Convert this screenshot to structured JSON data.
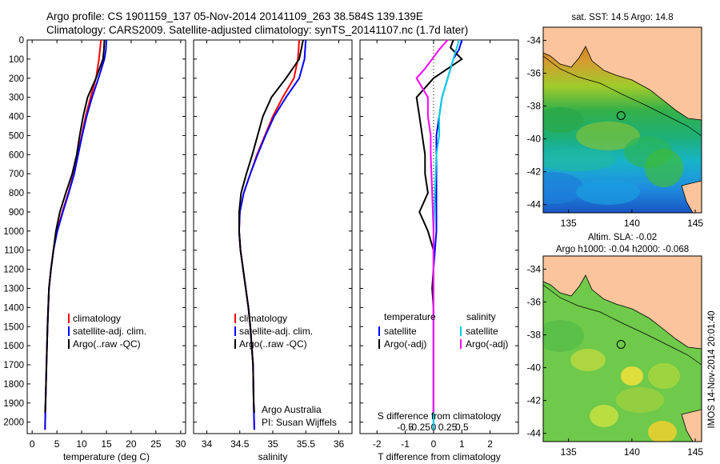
{
  "header": {
    "line1": "Argo profile: CS 1901159_137 05-Nov-2014 20141109_263 38.584S 139.139E",
    "line2": "Climatology: CARS2009. Satellite-adjusted climatology: synTS_20141107.nc (1.7d later)"
  },
  "footer_stamp": "IMOS 14-Nov-2014 20:01:40",
  "colors": {
    "climatology": "#ff0000",
    "satellite": "#0000ff",
    "argo": "#000000",
    "salinity_sat": "#00d0e0",
    "salinity_argo": "#ff00ff",
    "land": "#fbc49c"
  },
  "chart_data": [
    {
      "id": "temperature",
      "type": "line",
      "xlabel": "temperature (deg C)",
      "ylabel": "",
      "xlim": [
        -1,
        31
      ],
      "ylim": [
        2060,
        0
      ],
      "xticks": [
        0,
        5,
        10,
        15,
        20,
        25,
        30
      ],
      "yticks": [
        0,
        100,
        200,
        300,
        400,
        500,
        600,
        700,
        800,
        900,
        1000,
        1100,
        1200,
        1300,
        1400,
        1500,
        1600,
        1700,
        1800,
        1900,
        2000
      ],
      "legend": [
        "climatology",
        "satellite-adj. clim.",
        "Argo(..raw -QC)"
      ],
      "series": [
        {
          "name": "climatology",
          "color": "#ff0000",
          "points": [
            [
              13.9,
              0
            ],
            [
              13.7,
              50
            ],
            [
              13.5,
              100
            ],
            [
              12.9,
              200
            ],
            [
              11.8,
              300
            ],
            [
              10.8,
              400
            ],
            [
              10.0,
              500
            ],
            [
              9.2,
              600
            ],
            [
              8.4,
              700
            ],
            [
              7.3,
              800
            ],
            [
              6.1,
              900
            ],
            [
              5.0,
              1000
            ],
            [
              4.3,
              1100
            ],
            [
              3.8,
              1200
            ],
            [
              3.4,
              1300
            ],
            [
              3.1,
              1500
            ],
            [
              2.9,
              1700
            ],
            [
              2.7,
              1900
            ],
            [
              2.6,
              2040
            ]
          ]
        },
        {
          "name": "satellite-adj. clim.",
          "color": "#0000ff",
          "points": [
            [
              15.0,
              0
            ],
            [
              14.9,
              50
            ],
            [
              14.6,
              100
            ],
            [
              13.4,
              200
            ],
            [
              12.1,
              300
            ],
            [
              11.0,
              400
            ],
            [
              10.1,
              500
            ],
            [
              9.3,
              600
            ],
            [
              8.5,
              700
            ],
            [
              7.4,
              800
            ],
            [
              6.2,
              900
            ],
            [
              5.1,
              1000
            ],
            [
              4.3,
              1100
            ],
            [
              3.8,
              1200
            ],
            [
              3.4,
              1300
            ],
            [
              3.1,
              1500
            ],
            [
              2.9,
              1700
            ],
            [
              2.7,
              1900
            ],
            [
              2.6,
              2040
            ]
          ]
        },
        {
          "name": "Argo(..raw -QC)",
          "color": "#000000",
          "points": [
            [
              14.6,
              0
            ],
            [
              14.5,
              50
            ],
            [
              14.3,
              100
            ],
            [
              12.9,
              200
            ],
            [
              11.2,
              300
            ],
            [
              10.3,
              400
            ],
            [
              9.6,
              500
            ],
            [
              9.0,
              600
            ],
            [
              8.1,
              700
            ],
            [
              6.8,
              800
            ],
            [
              5.6,
              900
            ],
            [
              4.8,
              1000
            ],
            [
              4.3,
              1100
            ],
            [
              3.8,
              1200
            ],
            [
              3.4,
              1300
            ],
            [
              3.1,
              1500
            ],
            [
              2.9,
              1700
            ],
            [
              2.7,
              1900
            ],
            [
              2.6,
              1950
            ]
          ]
        }
      ]
    },
    {
      "id": "salinity",
      "type": "line",
      "xlabel": "salinity",
      "ylabel": "",
      "xlim": [
        33.8,
        36.2
      ],
      "ylim": [
        2060,
        0
      ],
      "xticks": [
        34,
        34.5,
        35,
        35.5,
        36
      ],
      "legend": [
        "climatology",
        "satellite-adj. clim.",
        "Argo(..raw -QC)"
      ],
      "annotations": [
        "Argo Australia",
        "PI: Susan Wijffels"
      ],
      "series": [
        {
          "name": "climatology",
          "color": "#ff0000",
          "points": [
            [
              35.4,
              0
            ],
            [
              35.38,
              100
            ],
            [
              35.32,
              200
            ],
            [
              35.15,
              300
            ],
            [
              35.0,
              400
            ],
            [
              34.88,
              500
            ],
            [
              34.76,
              600
            ],
            [
              34.66,
              700
            ],
            [
              34.56,
              800
            ],
            [
              34.5,
              900
            ],
            [
              34.49,
              1000
            ],
            [
              34.51,
              1100
            ],
            [
              34.55,
              1200
            ],
            [
              34.59,
              1300
            ],
            [
              34.63,
              1400
            ],
            [
              34.66,
              1500
            ],
            [
              34.68,
              1600
            ],
            [
              34.7,
              1700
            ],
            [
              34.71,
              1900
            ],
            [
              34.72,
              2040
            ]
          ]
        },
        {
          "name": "satellite-adj. clim.",
          "color": "#0000ff",
          "points": [
            [
              35.5,
              0
            ],
            [
              35.48,
              100
            ],
            [
              35.4,
              200
            ],
            [
              35.2,
              300
            ],
            [
              35.02,
              400
            ],
            [
              34.89,
              500
            ],
            [
              34.77,
              600
            ],
            [
              34.66,
              700
            ],
            [
              34.56,
              800
            ],
            [
              34.5,
              900
            ],
            [
              34.49,
              1000
            ],
            [
              34.51,
              1100
            ],
            [
              34.55,
              1200
            ],
            [
              34.59,
              1300
            ],
            [
              34.63,
              1400
            ],
            [
              34.66,
              1500
            ],
            [
              34.68,
              1600
            ],
            [
              34.7,
              1700
            ],
            [
              34.71,
              1900
            ],
            [
              34.72,
              2040
            ]
          ]
        },
        {
          "name": "Argo(..raw -QC)",
          "color": "#000000",
          "points": [
            [
              35.46,
              0
            ],
            [
              35.4,
              100
            ],
            [
              35.2,
              200
            ],
            [
              34.98,
              300
            ],
            [
              34.85,
              400
            ],
            [
              34.77,
              500
            ],
            [
              34.69,
              600
            ],
            [
              34.6,
              700
            ],
            [
              34.52,
              800
            ],
            [
              34.49,
              900
            ],
            [
              34.49,
              1000
            ],
            [
              34.51,
              1100
            ],
            [
              34.55,
              1200
            ],
            [
              34.59,
              1300
            ],
            [
              34.63,
              1400
            ],
            [
              34.66,
              1500
            ],
            [
              34.68,
              1600
            ],
            [
              34.7,
              1700
            ],
            [
              34.71,
              1900
            ],
            [
              34.72,
              1950
            ]
          ]
        }
      ]
    },
    {
      "id": "difference",
      "type": "line",
      "xlabel": "T difference from climatology",
      "xlabel_top": "S difference from climatology",
      "ylabel": "",
      "xlim": [
        -2.6,
        3.0
      ],
      "ylim": [
        2060,
        0
      ],
      "xticks": [
        -2,
        -1,
        0,
        1,
        2
      ],
      "sticks_labels": [
        [
          "-0.5",
          -1.0
        ],
        [
          "-0.25",
          -0.5
        ],
        [
          "0",
          0
        ],
        [
          "0.25",
          0.5
        ],
        [
          "0.5",
          1.0
        ]
      ],
      "legend_left_title": "temperature",
      "legend_right_title": "salinity",
      "legend_left": [
        "satellite",
        "Argo(-adj)"
      ],
      "legend_right": [
        "satellite",
        "Argo(-adj)"
      ],
      "series": [
        {
          "name": "T satellite",
          "color": "#0000ff",
          "points": [
            [
              1.0,
              0
            ],
            [
              0.9,
              50
            ],
            [
              0.7,
              100
            ],
            [
              0.5,
              200
            ],
            [
              0.3,
              300
            ],
            [
              0.2,
              400
            ],
            [
              0.1,
              500
            ],
            [
              0.1,
              600
            ],
            [
              0.1,
              700
            ],
            [
              0.1,
              800
            ],
            [
              0.1,
              900
            ],
            [
              0.1,
              1000
            ],
            [
              0.05,
              1100
            ],
            [
              0.0,
              1200
            ],
            [
              0.0,
              1500
            ],
            [
              0.0,
              2040
            ]
          ]
        },
        {
          "name": "T Argo(-adj)",
          "color": "#000000",
          "points": [
            [
              0.7,
              0
            ],
            [
              0.6,
              40
            ],
            [
              1.0,
              100
            ],
            [
              0.0,
              200
            ],
            [
              -0.6,
              300
            ],
            [
              -0.5,
              400
            ],
            [
              -0.4,
              500
            ],
            [
              -0.3,
              600
            ],
            [
              -0.3,
              700
            ],
            [
              -0.2,
              800
            ],
            [
              -0.5,
              900
            ],
            [
              -0.2,
              1000
            ],
            [
              0.0,
              1100
            ],
            [
              0.0,
              1200
            ],
            [
              -0.05,
              1300
            ],
            [
              0.0,
              1400
            ],
            [
              0.0,
              1950
            ]
          ]
        },
        {
          "name": "S satellite",
          "color": "#00d0e0",
          "points": [
            [
              0.9,
              0
            ],
            [
              0.7,
              100
            ],
            [
              0.5,
              200
            ],
            [
              0.3,
              300
            ],
            [
              0.2,
              400
            ],
            [
              0.2,
              500
            ],
            [
              0.1,
              600
            ],
            [
              0.05,
              800
            ],
            [
              0.0,
              1000
            ],
            [
              0.0,
              2040
            ]
          ]
        },
        {
          "name": "S Argo(-adj)",
          "color": "#ff00ff",
          "points": [
            [
              0.5,
              0
            ],
            [
              0.2,
              50
            ],
            [
              -0.3,
              150
            ],
            [
              -0.6,
              200
            ],
            [
              -0.2,
              300
            ],
            [
              -0.2,
              400
            ],
            [
              -0.1,
              500
            ],
            [
              -0.1,
              600
            ],
            [
              -0.05,
              800
            ],
            [
              0.0,
              1000
            ],
            [
              0.0,
              1950
            ]
          ]
        }
      ]
    },
    {
      "id": "map_sst",
      "type": "heatmap",
      "title": "sat. SST: 14.5 Argo: 14.8",
      "xticks": [
        135,
        140,
        145
      ],
      "yticks": [
        -34,
        -36,
        -38,
        -40,
        -42,
        -44
      ],
      "xlim": [
        133,
        145.5
      ],
      "ylim": [
        -44.5,
        -33.2
      ],
      "argo_position": [
        139.14,
        -38.58
      ]
    },
    {
      "id": "map_sla",
      "type": "heatmap",
      "title": "Altim. SLA: -0.02",
      "subtitle": "Argo h1000: -0.04 h2000: -0.068",
      "xticks": [
        135,
        140,
        145
      ],
      "yticks": [
        -34,
        -36,
        -38,
        -40,
        -42,
        -44
      ],
      "xlim": [
        133,
        145.5
      ],
      "ylim": [
        -44.5,
        -33.2
      ],
      "argo_position": [
        139.14,
        -38.58
      ]
    }
  ]
}
